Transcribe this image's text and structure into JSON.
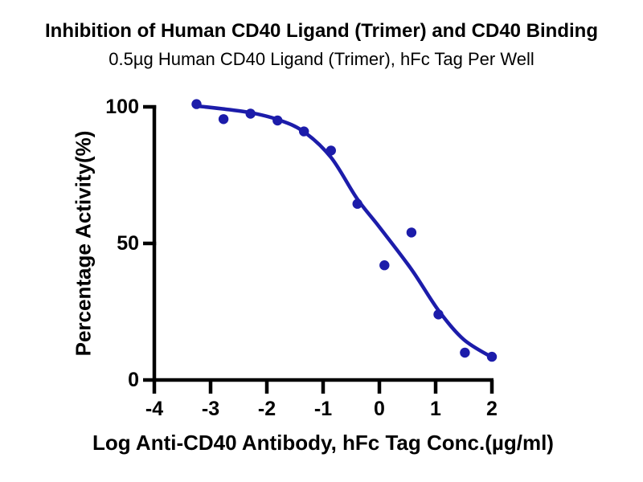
{
  "title": "Inhibition of Human CD40 Ligand (Trimer) and CD40 Binding",
  "subtitle": "0.5µg Human CD40 Ligand (Trimer), hFc Tag Per Well",
  "chart_data": {
    "type": "scatter",
    "title": "Inhibition of Human CD40 Ligand (Trimer) and CD40 Binding",
    "subtitle": "0.5µg Human CD40 Ligand (Trimer), hFc Tag Per Well",
    "xlabel": "Log Anti-CD40 Antibody, hFc Tag Conc.(µg/ml)",
    "ylabel": "Percentage Activity(%)",
    "xlim": [
      -4,
      2
    ],
    "ylim": [
      0,
      100
    ],
    "x_ticks": [
      -4,
      -3,
      -2,
      -1,
      0,
      1,
      2
    ],
    "x_tick_labels": [
      "-4",
      "-3",
      "-2",
      "-1",
      "0",
      "1",
      "2"
    ],
    "y_ticks": [
      0,
      50,
      100
    ],
    "y_tick_labels": [
      "0",
      "50",
      "100"
    ],
    "grid": false,
    "legend": "none",
    "marker_color": "#1c1caa",
    "curve_color": "#1c1caa",
    "axis_color": "#000000",
    "series": [
      {
        "name": "Anti-CD40 Antibody, hFc Tag",
        "x": [
          -3.25,
          -2.77,
          -2.29,
          -1.81,
          -1.34,
          -0.86,
          -0.39,
          0.09,
          0.57,
          1.05,
          1.52,
          2.0
        ],
        "y": [
          101,
          95.5,
          97.5,
          95,
          91,
          84,
          64.5,
          42,
          54,
          24,
          10,
          8.5
        ]
      }
    ],
    "fit_curve": {
      "model": "four-parameter-logistic (dose-response inhibition)",
      "points": [
        [
          -3.25,
          100.3
        ],
        [
          -2.8,
          99.3
        ],
        [
          -2.3,
          97.9
        ],
        [
          -1.8,
          95.3
        ],
        [
          -1.35,
          91.0
        ],
        [
          -0.86,
          81.5
        ],
        [
          -0.4,
          66.5
        ],
        [
          0.0,
          56.0
        ],
        [
          0.57,
          40.5
        ],
        [
          1.05,
          25.5
        ],
        [
          1.5,
          14.8
        ],
        [
          2.0,
          8.3
        ]
      ]
    }
  }
}
